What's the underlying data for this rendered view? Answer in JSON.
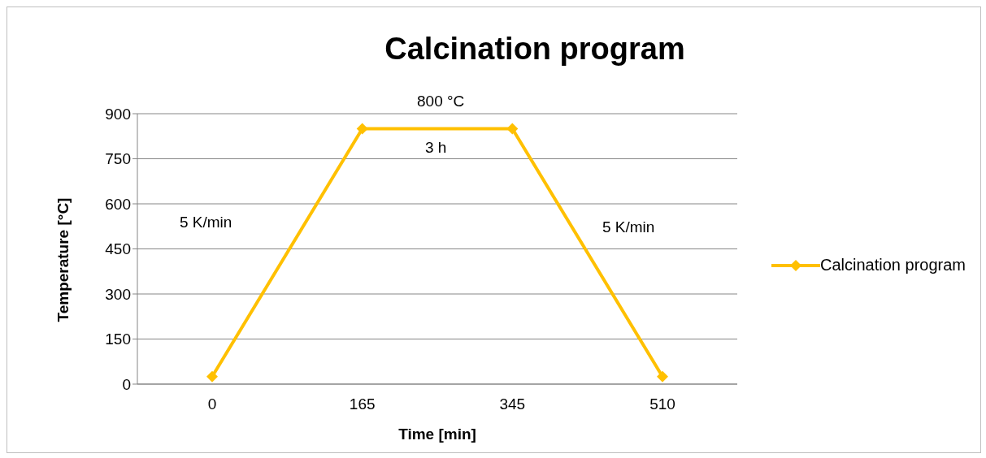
{
  "chart_data": {
    "type": "line",
    "title": "Calcination program",
    "xlabel": "Time [min]",
    "ylabel": "Temperature [°C]",
    "categories": [
      "0",
      "165",
      "345",
      "510"
    ],
    "series": [
      {
        "name": "Calcination program",
        "color": "#ffc000",
        "values": [
          25,
          850,
          850,
          25
        ]
      }
    ],
    "ylim": [
      0,
      900
    ],
    "yticks": [
      0,
      150,
      300,
      450,
      600,
      750,
      900
    ],
    "grid": "y",
    "legend": "right",
    "marker": "diamond",
    "line_style": "solid",
    "annotations": [
      "800 °C",
      "3 h",
      "5 K/min",
      "5 K/min"
    ]
  }
}
